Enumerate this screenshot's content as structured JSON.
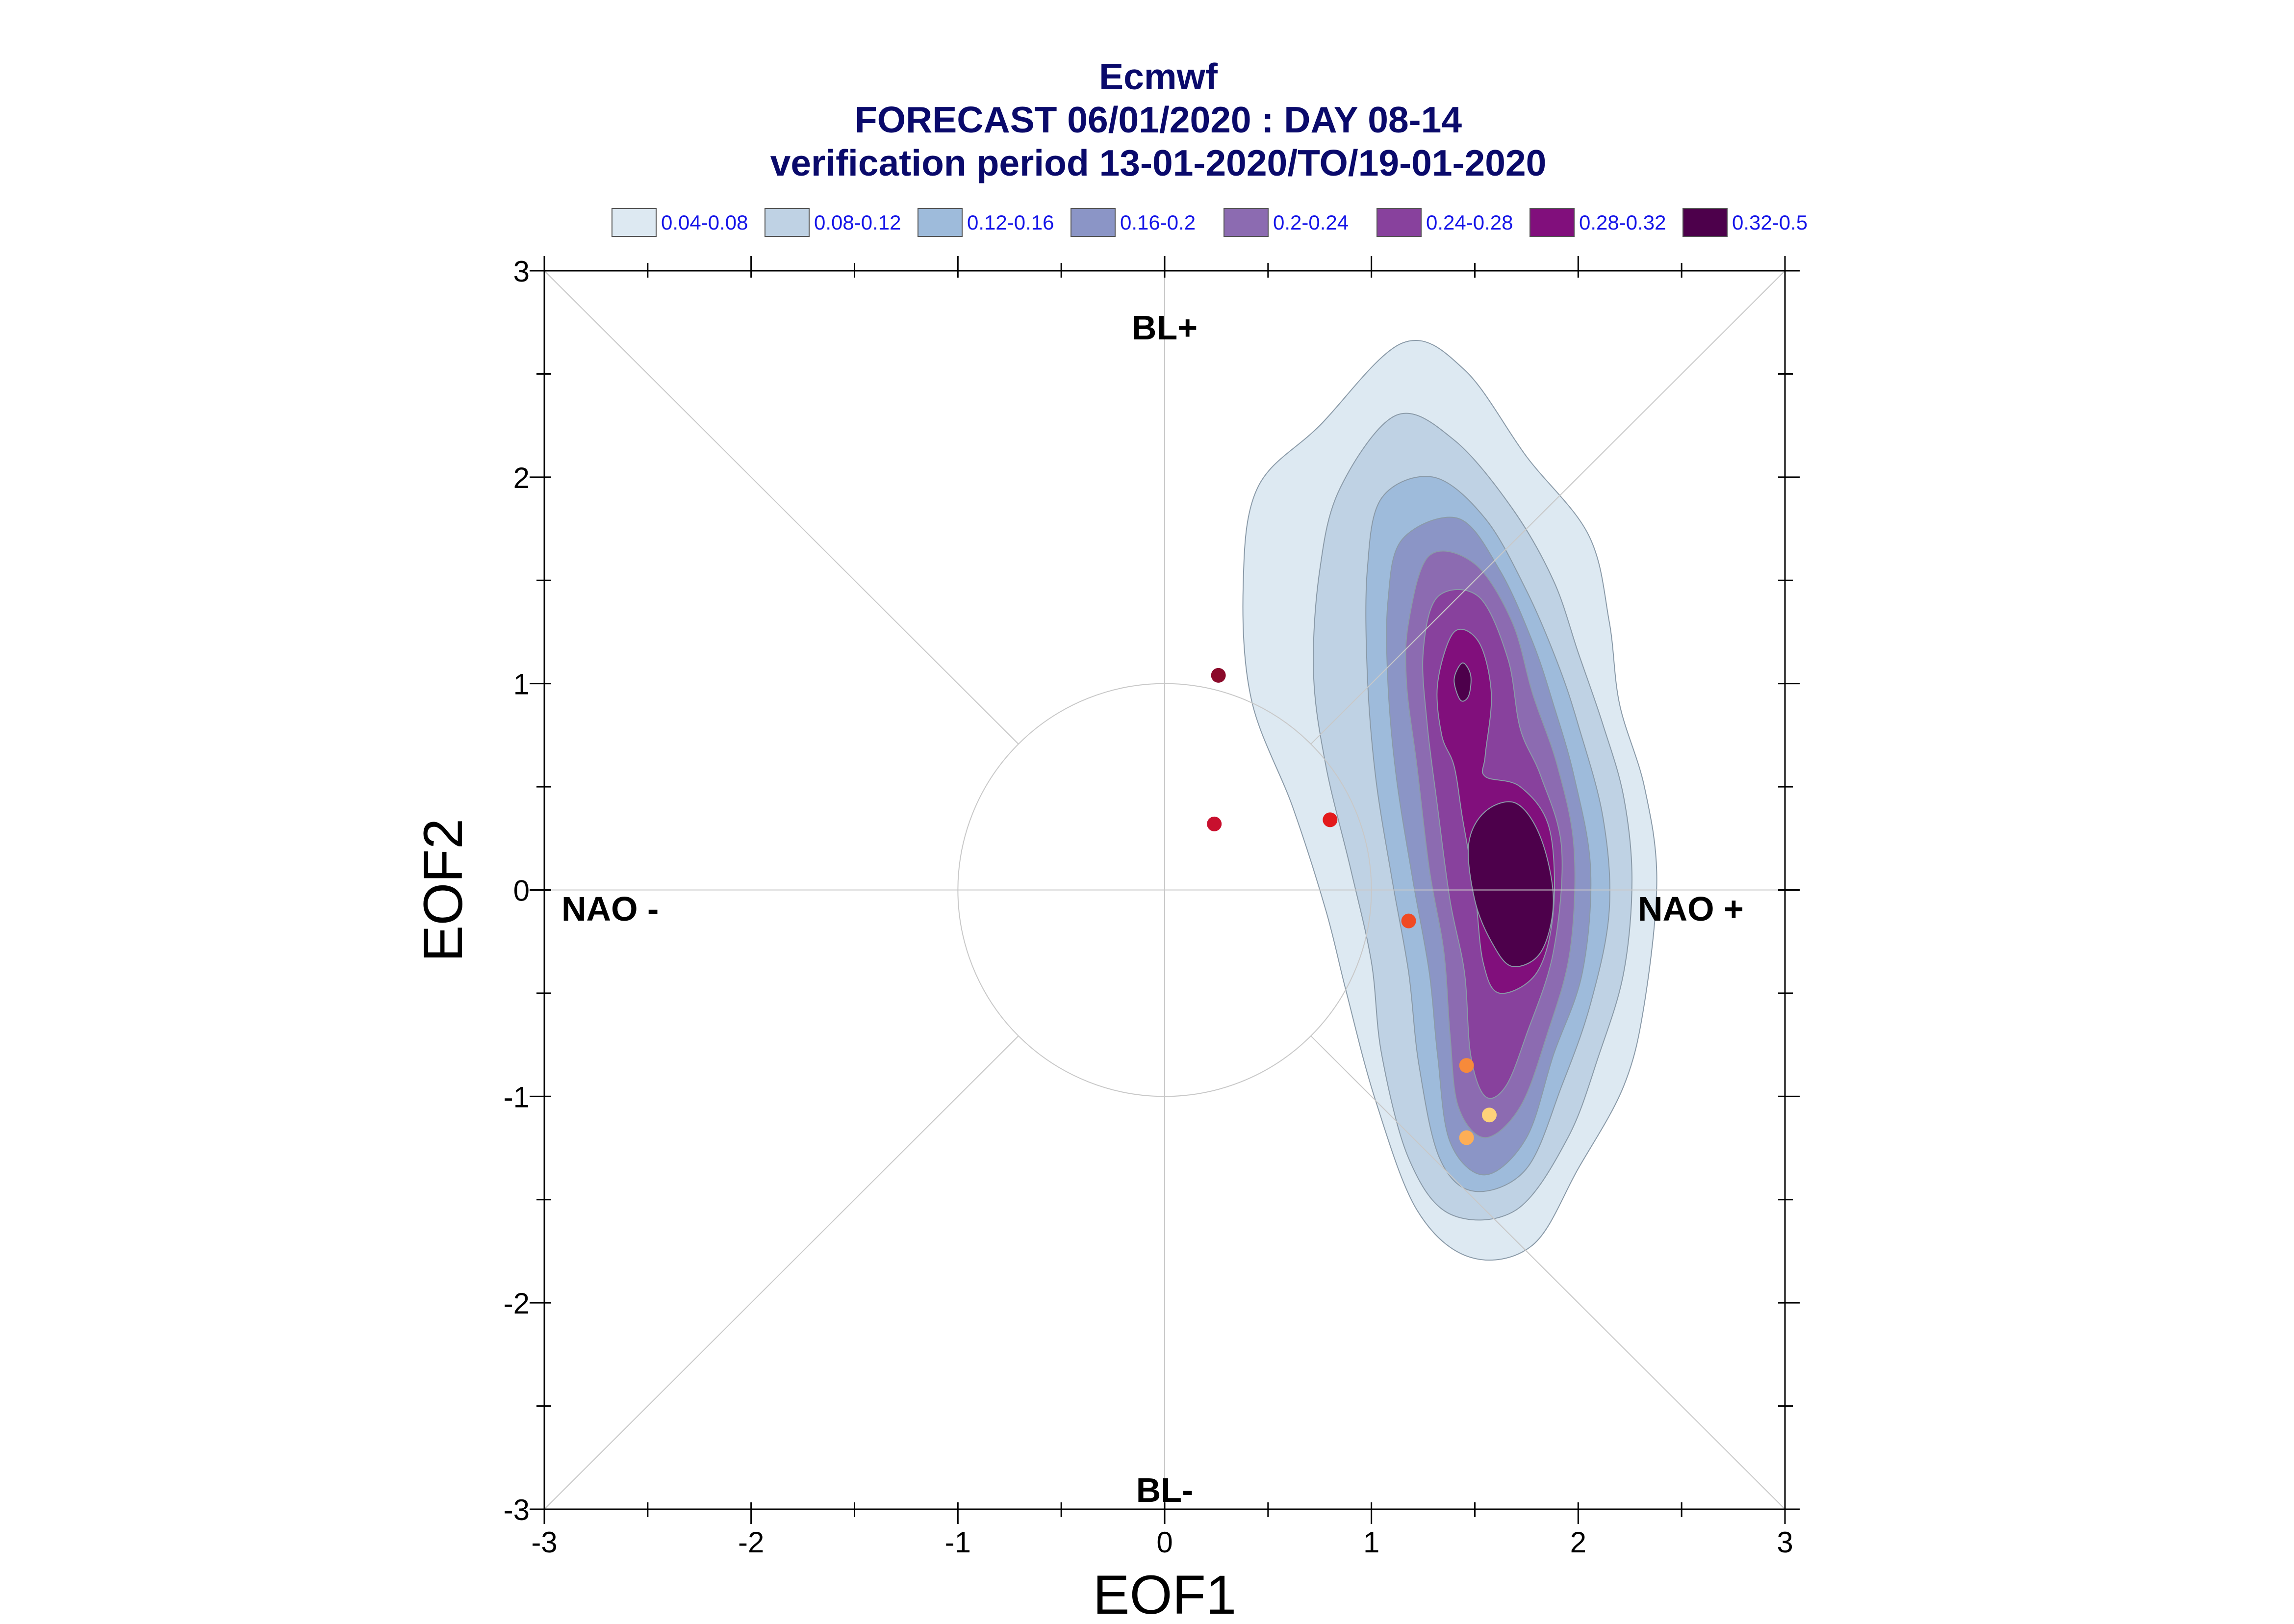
{
  "chart_data": {
    "type": "contour-scatter",
    "title": "Ecmwf",
    "subtitle": "FORECAST 06/01/2020 : DAY 08-14",
    "subtitle2": "verification period 13-01-2020/TO/19-01-2020",
    "xlabel": "EOF1",
    "ylabel": "EOF2",
    "xlim": [
      -3,
      3
    ],
    "ylim": [
      -3,
      3
    ],
    "xticks": [
      "-3",
      "-2",
      "-1",
      "0",
      "1",
      "2",
      "3"
    ],
    "yticks": [
      "-3",
      "-2",
      "-1",
      "0",
      "1",
      "2",
      "3"
    ],
    "legend_position": "top",
    "legend": [
      {
        "label": "0.04-0.08",
        "color": "#dde9f2"
      },
      {
        "label": "0.08-0.12",
        "color": "#bfd2e4"
      },
      {
        "label": "0.12-0.16",
        "color": "#9ebbdb"
      },
      {
        "label": "0.16-0.2",
        "color": "#8b95c6"
      },
      {
        "label": "0.2-0.24",
        "color": "#8c6bb1"
      },
      {
        "label": "0.24-0.28",
        "color": "#88419d"
      },
      {
        "label": "0.28-0.32",
        "color": "#810f7c"
      },
      {
        "label": "0.32-0.5",
        "color": "#4d004b"
      }
    ],
    "regimes": {
      "top": "BL+",
      "bottom": "BL-",
      "left": "NAO -",
      "right": "NAO +"
    },
    "reference_circle_radius": 1,
    "points": [
      {
        "x": 0.26,
        "y": 1.04,
        "color": "#8b0a2a"
      },
      {
        "x": 0.24,
        "y": 0.32,
        "color": "#c8102e"
      },
      {
        "x": 0.8,
        "y": 0.34,
        "color": "#e31a1c"
      },
      {
        "x": 1.18,
        "y": -0.15,
        "color": "#f04a24"
      },
      {
        "x": 1.46,
        "y": -0.85,
        "color": "#f78a3a"
      },
      {
        "x": 1.57,
        "y": -1.09,
        "color": "#fed27a"
      },
      {
        "x": 1.46,
        "y": -1.2,
        "color": "#fdae56"
      }
    ],
    "contours": [
      {
        "level": "0.04-0.08",
        "color": "#dde9f2",
        "points": [
          [
            0.38,
            1.48
          ],
          [
            0.45,
            1.95
          ],
          [
            0.75,
            2.25
          ],
          [
            1.15,
            2.65
          ],
          [
            1.45,
            2.52
          ],
          [
            1.75,
            2.1
          ],
          [
            2.05,
            1.72
          ],
          [
            2.15,
            1.3
          ],
          [
            2.2,
            0.9
          ],
          [
            2.32,
            0.5
          ],
          [
            2.38,
            0.05
          ],
          [
            2.32,
            -0.55
          ],
          [
            2.22,
            -0.95
          ],
          [
            2.0,
            -1.35
          ],
          [
            1.78,
            -1.72
          ],
          [
            1.48,
            -1.78
          ],
          [
            1.22,
            -1.55
          ],
          [
            1.02,
            -1.02
          ],
          [
            0.88,
            -0.5
          ],
          [
            0.78,
            -0.1
          ],
          [
            0.62,
            0.4
          ],
          [
            0.42,
            0.92
          ]
        ]
      },
      {
        "level": "0.08-0.12",
        "color": "#bfd2e4",
        "points": [
          [
            0.75,
            1.55
          ],
          [
            0.85,
            1.95
          ],
          [
            1.12,
            2.3
          ],
          [
            1.4,
            2.18
          ],
          [
            1.68,
            1.85
          ],
          [
            1.88,
            1.5
          ],
          [
            2.0,
            1.15
          ],
          [
            2.12,
            0.8
          ],
          [
            2.22,
            0.45
          ],
          [
            2.26,
            0.05
          ],
          [
            2.22,
            -0.4
          ],
          [
            2.1,
            -0.8
          ],
          [
            1.95,
            -1.2
          ],
          [
            1.7,
            -1.55
          ],
          [
            1.38,
            -1.57
          ],
          [
            1.18,
            -1.3
          ],
          [
            1.05,
            -0.8
          ],
          [
            1.0,
            -0.35
          ],
          [
            0.9,
            0.1
          ],
          [
            0.78,
            0.6
          ],
          [
            0.72,
            1.05
          ]
        ]
      },
      {
        "level": "0.12-0.16",
        "color": "#9ebbdb",
        "points": [
          [
            0.98,
            1.55
          ],
          [
            1.05,
            1.9
          ],
          [
            1.3,
            2.0
          ],
          [
            1.55,
            1.8
          ],
          [
            1.75,
            1.45
          ],
          [
            1.9,
            1.1
          ],
          [
            2.0,
            0.8
          ],
          [
            2.12,
            0.35
          ],
          [
            2.15,
            -0.1
          ],
          [
            2.06,
            -0.55
          ],
          [
            1.92,
            -0.95
          ],
          [
            1.75,
            -1.35
          ],
          [
            1.5,
            -1.46
          ],
          [
            1.33,
            -1.3
          ],
          [
            1.23,
            -0.85
          ],
          [
            1.18,
            -0.4
          ],
          [
            1.1,
            0.05
          ],
          [
            1.02,
            0.55
          ],
          [
            0.98,
            1.05
          ]
        ]
      },
      {
        "level": "0.16-0.2",
        "color": "#8b95c6",
        "points": [
          [
            1.08,
            1.4
          ],
          [
            1.15,
            1.7
          ],
          [
            1.42,
            1.8
          ],
          [
            1.62,
            1.55
          ],
          [
            1.78,
            1.2
          ],
          [
            1.88,
            0.9
          ],
          [
            1.98,
            0.55
          ],
          [
            2.06,
            0.1
          ],
          [
            2.02,
            -0.4
          ],
          [
            1.88,
            -0.8
          ],
          [
            1.75,
            -1.2
          ],
          [
            1.55,
            -1.38
          ],
          [
            1.38,
            -1.22
          ],
          [
            1.32,
            -0.8
          ],
          [
            1.28,
            -0.4
          ],
          [
            1.2,
            0.05
          ],
          [
            1.12,
            0.55
          ],
          [
            1.08,
            1.0
          ]
        ]
      },
      {
        "level": "0.2-0.24",
        "color": "#8c6bb1",
        "points": [
          [
            1.18,
            1.3
          ],
          [
            1.28,
            1.62
          ],
          [
            1.5,
            1.58
          ],
          [
            1.68,
            1.3
          ],
          [
            1.78,
            0.95
          ],
          [
            1.9,
            0.6
          ],
          [
            1.98,
            0.2
          ],
          [
            1.96,
            -0.3
          ],
          [
            1.85,
            -0.7
          ],
          [
            1.72,
            -1.05
          ],
          [
            1.55,
            -1.2
          ],
          [
            1.42,
            -1.05
          ],
          [
            1.38,
            -0.7
          ],
          [
            1.35,
            -0.3
          ],
          [
            1.28,
            0.1
          ],
          [
            1.22,
            0.6
          ],
          [
            1.17,
            1.0
          ]
        ]
      },
      {
        "level": "0.24-0.28",
        "color": "#88419d",
        "points": [
          [
            1.25,
            1.15
          ],
          [
            1.32,
            1.42
          ],
          [
            1.52,
            1.42
          ],
          [
            1.66,
            1.12
          ],
          [
            1.72,
            0.78
          ],
          [
            1.82,
            0.55
          ],
          [
            1.92,
            0.2
          ],
          [
            1.88,
            -0.3
          ],
          [
            1.75,
            -0.7
          ],
          [
            1.65,
            -0.95
          ],
          [
            1.55,
            -1.0
          ],
          [
            1.48,
            -0.8
          ],
          [
            1.45,
            -0.4
          ],
          [
            1.38,
            -0.05
          ],
          [
            1.32,
            0.4
          ],
          [
            1.27,
            0.8
          ]
        ]
      },
      {
        "level": "0.28-0.32",
        "color": "#810f7c",
        "points": [
          [
            1.32,
            1.0
          ],
          [
            1.4,
            1.25
          ],
          [
            1.52,
            1.2
          ],
          [
            1.58,
            0.95
          ],
          [
            1.55,
            0.65
          ],
          [
            1.55,
            0.55
          ],
          [
            1.72,
            0.5
          ],
          [
            1.86,
            0.3
          ],
          [
            1.88,
            -0.1
          ],
          [
            1.8,
            -0.4
          ],
          [
            1.62,
            -0.5
          ],
          [
            1.54,
            -0.35
          ],
          [
            1.5,
            0.0
          ],
          [
            1.44,
            0.35
          ],
          [
            1.4,
            0.6
          ],
          [
            1.34,
            0.75
          ]
        ]
      },
      {
        "level": "0.32-0.5",
        "color": "#4d004b",
        "points": [
          [
            1.47,
            0.22
          ],
          [
            1.55,
            0.38
          ],
          [
            1.7,
            0.42
          ],
          [
            1.82,
            0.25
          ],
          [
            1.88,
            -0.05
          ],
          [
            1.82,
            -0.3
          ],
          [
            1.68,
            -0.37
          ],
          [
            1.58,
            -0.25
          ],
          [
            1.5,
            -0.05
          ]
        ]
      },
      {
        "level": "0.32-0.5",
        "color": "#4d004b",
        "points": [
          [
            1.4,
            1.02
          ],
          [
            1.44,
            1.1
          ],
          [
            1.48,
            1.04
          ],
          [
            1.47,
            0.94
          ],
          [
            1.43,
            0.92
          ]
        ]
      }
    ]
  }
}
